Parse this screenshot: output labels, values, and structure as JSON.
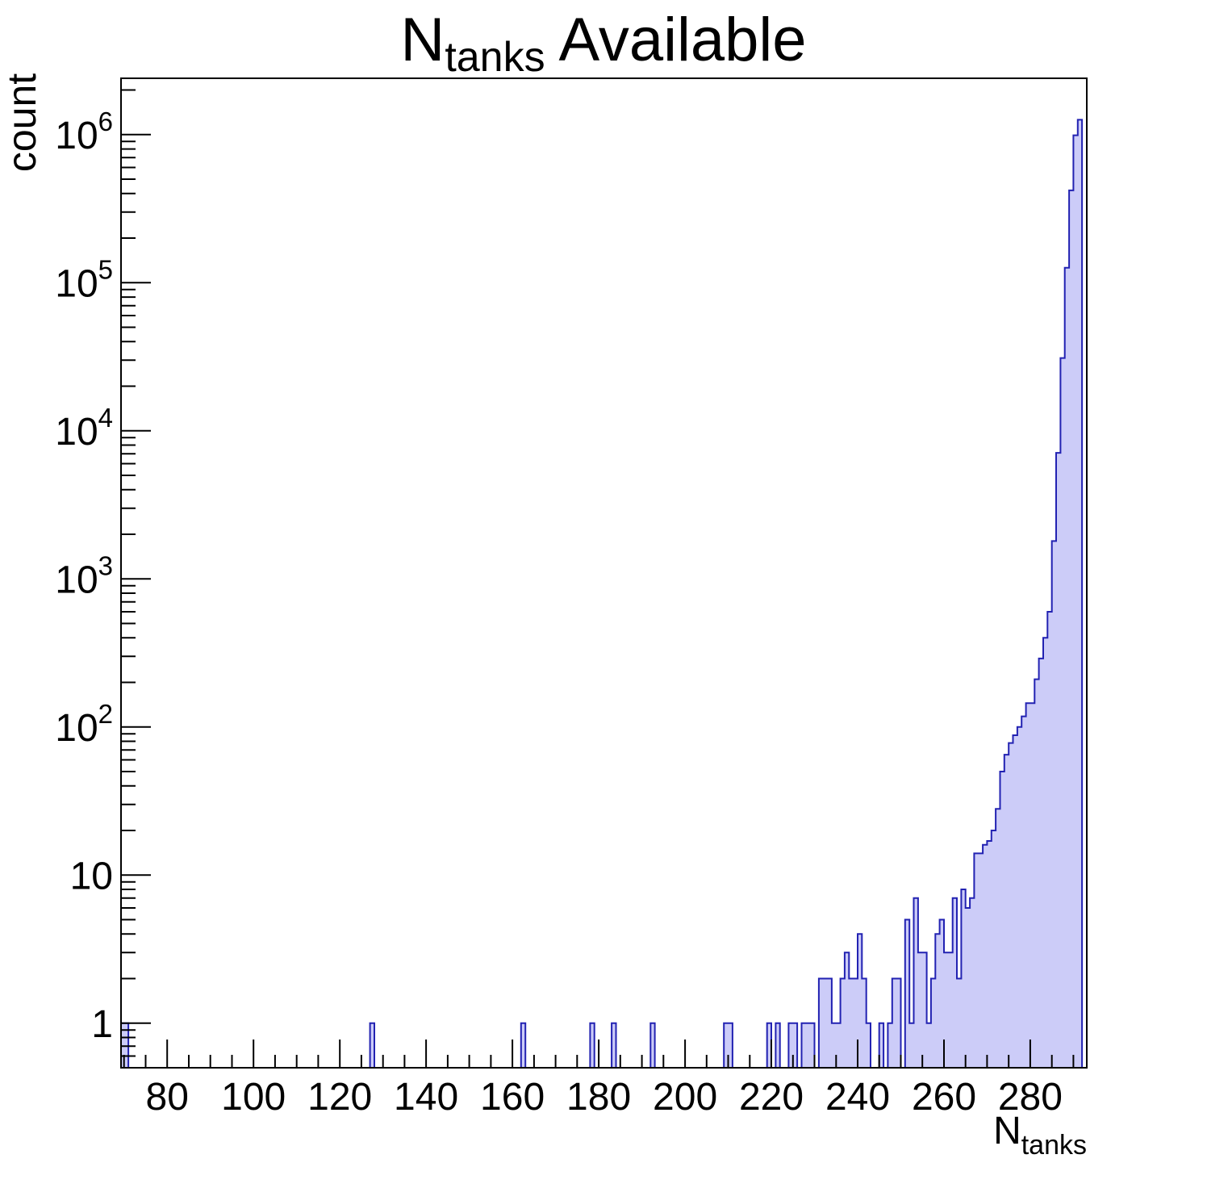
{
  "chart_data": {
    "type": "bar",
    "subtype": "histogram-log-y",
    "title": {
      "prefix": "N",
      "subscript": "tanks",
      "suffix": " Available",
      "plain": "N_tanks Available"
    },
    "ylabel": "count",
    "xlabel": {
      "prefix": "N",
      "subscript": "tanks",
      "plain": "N_tanks"
    },
    "x_axis": {
      "min": 69.3,
      "max": 293.1,
      "major_ticks": [
        80,
        100,
        120,
        140,
        160,
        180,
        200,
        220,
        240,
        260,
        280
      ],
      "tick_labels": [
        "80",
        "100",
        "120",
        "140",
        "160",
        "180",
        "200",
        "220",
        "240",
        "260",
        "280"
      ],
      "minor_tick_step": 5
    },
    "y_axis": {
      "scale": "log",
      "min": 0.5,
      "max": 2400000,
      "major_ticks": [
        1,
        10,
        100,
        1000,
        10000,
        100000,
        1000000
      ],
      "tick_labels": [
        {
          "v": 1,
          "label": "1"
        },
        {
          "v": 10,
          "label": "10"
        },
        {
          "v": 100,
          "base": "10",
          "sup": "2"
        },
        {
          "v": 1000,
          "base": "10",
          "sup": "3"
        },
        {
          "v": 10000,
          "base": "10",
          "sup": "4"
        },
        {
          "v": 100000,
          "base": "10",
          "sup": "5"
        },
        {
          "v": 1000000,
          "base": "10",
          "sup": "6"
        }
      ]
    },
    "bin_width": 1,
    "bins": [
      [
        69,
        1
      ],
      [
        70,
        1
      ],
      [
        127,
        1
      ],
      [
        162,
        1
      ],
      [
        178,
        1
      ],
      [
        183,
        1
      ],
      [
        192,
        1
      ],
      [
        209,
        1
      ],
      [
        210,
        1
      ],
      [
        219,
        1
      ],
      [
        221,
        1
      ],
      [
        224,
        1
      ],
      [
        225,
        1
      ],
      [
        227,
        1
      ],
      [
        228,
        1
      ],
      [
        229,
        1
      ],
      [
        231,
        2
      ],
      [
        232,
        2
      ],
      [
        233,
        2
      ],
      [
        234,
        1
      ],
      [
        235,
        1
      ],
      [
        236,
        2
      ],
      [
        237,
        3
      ],
      [
        238,
        2
      ],
      [
        239,
        2
      ],
      [
        240,
        4
      ],
      [
        241,
        2
      ],
      [
        242,
        1
      ],
      [
        245,
        1
      ],
      [
        247,
        1
      ],
      [
        248,
        2
      ],
      [
        249,
        2
      ],
      [
        251,
        5
      ],
      [
        252,
        1
      ],
      [
        253,
        7
      ],
      [
        254,
        3
      ],
      [
        255,
        3
      ],
      [
        256,
        1
      ],
      [
        257,
        2
      ],
      [
        258,
        4
      ],
      [
        259,
        5
      ],
      [
        260,
        3
      ],
      [
        261,
        3
      ],
      [
        262,
        7
      ],
      [
        263,
        2
      ],
      [
        264,
        8
      ],
      [
        265,
        6
      ],
      [
        266,
        7
      ],
      [
        267,
        14
      ],
      [
        268,
        14
      ],
      [
        269,
        16
      ],
      [
        270,
        17
      ],
      [
        271,
        20
      ],
      [
        272,
        28
      ],
      [
        273,
        50
      ],
      [
        274,
        65
      ],
      [
        275,
        78
      ],
      [
        276,
        88
      ],
      [
        277,
        100
      ],
      [
        278,
        118
      ],
      [
        279,
        145
      ],
      [
        280,
        145
      ],
      [
        281,
        210
      ],
      [
        282,
        290
      ],
      [
        283,
        400
      ],
      [
        284,
        600
      ],
      [
        285,
        1800
      ],
      [
        286,
        7100
      ],
      [
        287,
        31000
      ],
      [
        288,
        126000
      ],
      [
        289,
        420000
      ],
      [
        290,
        990000
      ],
      [
        291,
        1260000
      ]
    ]
  },
  "style": {
    "bar_fill": "#ccccf8",
    "bar_outline": "#2222b2",
    "axis_color": "#000000",
    "text_color": "#000000",
    "background": "#ffffff"
  }
}
